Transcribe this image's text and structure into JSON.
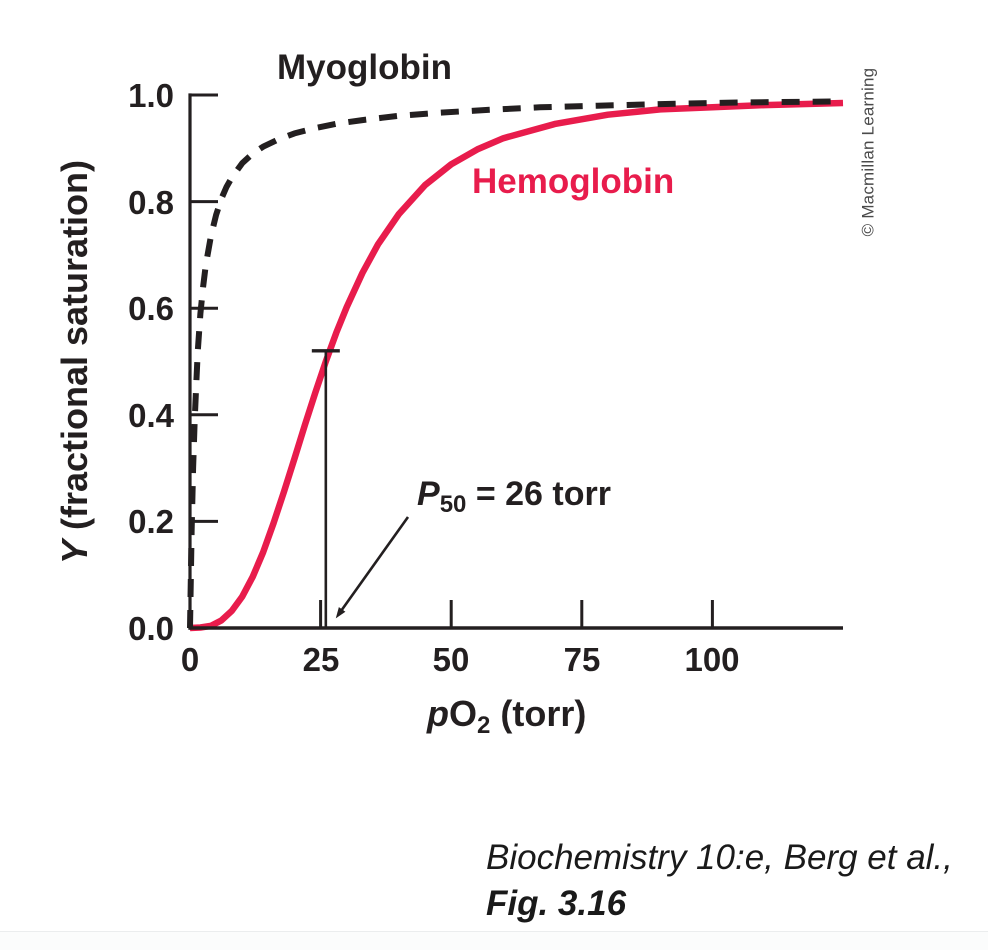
{
  "figure": {
    "myoglobin_label": "Myoglobin",
    "hemoglobin_label": "Hemoglobin",
    "watermark": "© Macmillan Learning",
    "citation_line1": "Biochemistry 10:e, Berg et al.,",
    "citation_line2": "Fig. 3.16"
  },
  "colors": {
    "axis": "#231f20",
    "myoglobin": "#231f20",
    "hemoglobin": "#e81c4c",
    "annotation": "#231f20"
  },
  "chart_data": {
    "type": "line",
    "title": "",
    "xlabel_parts": {
      "italic": "p",
      "main": "O",
      "sub": "2",
      "units": " (torr)"
    },
    "ylabel_parts": {
      "italic": "Y",
      "rest": " (fractional saturation)"
    },
    "xlim": [
      0,
      125
    ],
    "ylim": [
      0,
      1.0
    ],
    "grid": false,
    "legend_position": "inline-labels",
    "xticks": [
      {
        "value": 0,
        "label": "0",
        "tick": false
      },
      {
        "value": 25,
        "label": "25",
        "tick": true
      },
      {
        "value": 50,
        "label": "50",
        "tick": true
      },
      {
        "value": 75,
        "label": "75",
        "tick": true
      },
      {
        "value": 100,
        "label": "100",
        "tick": true
      }
    ],
    "yticks": [
      {
        "value": 0.0,
        "label": "0.0",
        "tick": false
      },
      {
        "value": 0.2,
        "label": "0.2",
        "tick": true
      },
      {
        "value": 0.4,
        "label": "0.4",
        "tick": true
      },
      {
        "value": 0.6,
        "label": "0.6",
        "tick": true
      },
      {
        "value": 0.8,
        "label": "0.8",
        "tick": true
      },
      {
        "value": 1.0,
        "label": "1.0",
        "tick": true
      }
    ],
    "series": [
      {
        "name": "Hemoglobin",
        "style": "solid",
        "color": "#e81c4c",
        "stroke_width": 6.5,
        "points": [
          [
            0,
            0
          ],
          [
            2,
            0.001
          ],
          [
            4,
            0.004
          ],
          [
            6,
            0.014
          ],
          [
            8,
            0.032
          ],
          [
            10,
            0.059
          ],
          [
            12,
            0.096
          ],
          [
            14,
            0.142
          ],
          [
            16,
            0.197
          ],
          [
            18,
            0.256
          ],
          [
            20,
            0.318
          ],
          [
            22,
            0.381
          ],
          [
            24,
            0.442
          ],
          [
            26,
            0.5
          ],
          [
            28,
            0.554
          ],
          [
            30,
            0.602
          ],
          [
            33,
            0.666
          ],
          [
            36,
            0.72
          ],
          [
            40,
            0.777
          ],
          [
            45,
            0.831
          ],
          [
            50,
            0.87
          ],
          [
            55,
            0.898
          ],
          [
            60,
            0.919
          ],
          [
            70,
            0.946
          ],
          [
            80,
            0.963
          ],
          [
            90,
            0.973
          ],
          [
            100,
            0.977
          ],
          [
            110,
            0.981
          ],
          [
            125,
            0.985
          ]
        ]
      },
      {
        "name": "Myoglobin",
        "style": "dashed",
        "color": "#231f20",
        "stroke_width": 6,
        "dash": [
          18,
          13
        ],
        "points": [
          [
            0,
            0
          ],
          [
            0.3,
            0.18
          ],
          [
            0.6,
            0.3
          ],
          [
            0.9,
            0.39
          ],
          [
            1.2,
            0.46
          ],
          [
            1.5,
            0.52
          ],
          [
            2,
            0.59
          ],
          [
            2.5,
            0.64
          ],
          [
            3,
            0.68
          ],
          [
            4,
            0.735
          ],
          [
            5,
            0.775
          ],
          [
            6,
            0.805
          ],
          [
            7,
            0.828
          ],
          [
            8,
            0.845
          ],
          [
            10,
            0.872
          ],
          [
            12,
            0.89
          ],
          [
            14,
            0.903
          ],
          [
            17,
            0.917
          ],
          [
            20,
            0.928
          ],
          [
            24,
            0.938
          ],
          [
            28,
            0.946
          ],
          [
            33,
            0.953
          ],
          [
            40,
            0.961
          ],
          [
            48,
            0.967
          ],
          [
            57,
            0.972
          ],
          [
            67,
            0.977
          ],
          [
            78,
            0.98
          ],
          [
            90,
            0.983
          ],
          [
            105,
            0.986
          ],
          [
            125,
            0.988
          ]
        ]
      }
    ],
    "annotations": {
      "p50": {
        "p": "P",
        "sub": "50",
        "rest": " = 26 torr",
        "x_torr": 26,
        "y_fraction": 0.52
      }
    }
  }
}
